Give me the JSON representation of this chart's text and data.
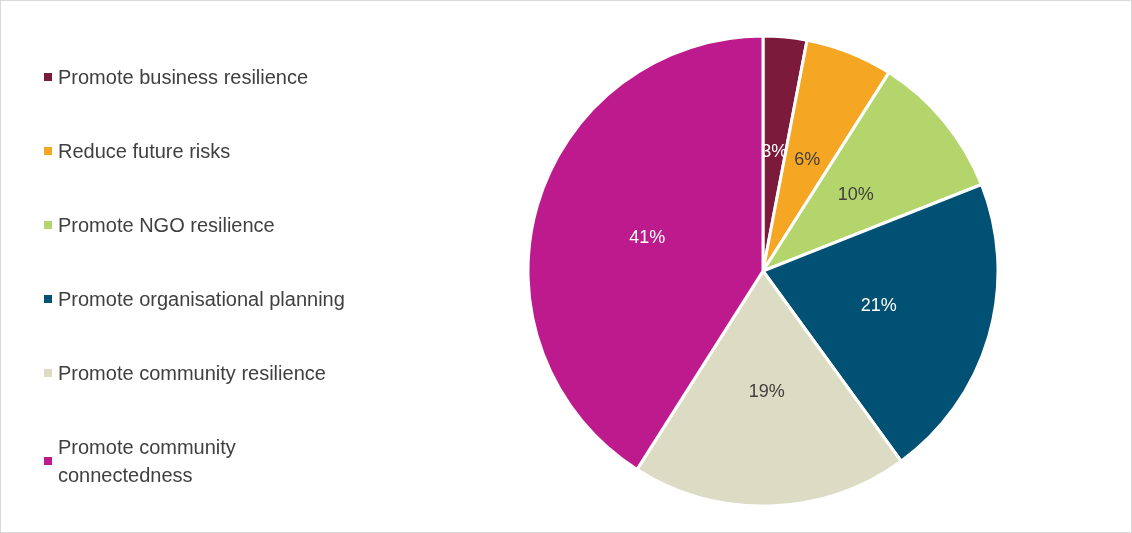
{
  "chart_data": {
    "type": "pie",
    "categories": [
      "Promote business resilience",
      "Reduce future risks",
      "Promote NGO resilience",
      "Promote organisational planning",
      "Promote community resilience",
      "Promote community connectedness"
    ],
    "values": [
      3,
      6,
      10,
      21,
      19,
      41
    ],
    "colors": [
      "#7b1a3a",
      "#f5a623",
      "#b3d56b",
      "#005173",
      "#dcdbc3",
      "#bd1a8d"
    ],
    "value_labels": [
      "3%",
      "6%",
      "10%",
      "21%",
      "19%",
      "41%"
    ],
    "legend": "left"
  }
}
